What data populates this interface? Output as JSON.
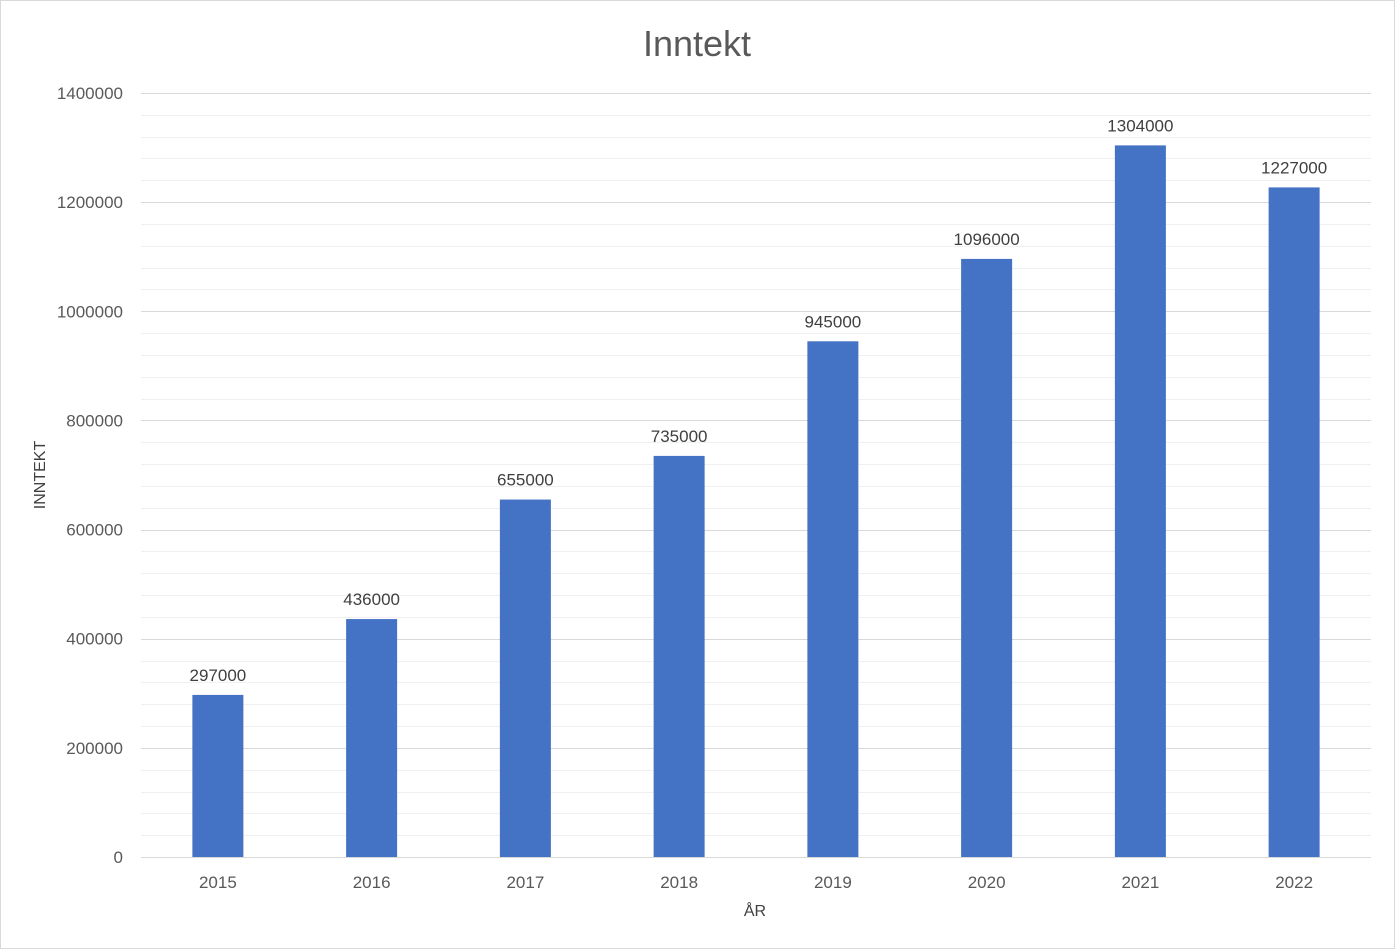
{
  "chart_data": {
    "type": "bar",
    "title": "Inntekt",
    "xlabel": "ÅR",
    "ylabel": "INNTEKT",
    "categories": [
      "2015",
      "2016",
      "2017",
      "2018",
      "2019",
      "2020",
      "2021",
      "2022"
    ],
    "series": [
      {
        "values": [
          297000,
          436000,
          655000,
          735000,
          945000,
          1096000,
          1304000,
          1227000
        ]
      }
    ],
    "data_labels": [
      "297000",
      "436000",
      "655000",
      "735000",
      "945000",
      "1096000",
      "1304000",
      "1227000"
    ],
    "ylim": [
      0,
      1400000
    ],
    "yticks": [
      "0",
      "200000",
      "400000",
      "600000",
      "800000",
      "1000000",
      "1200000",
      "1400000"
    ],
    "major_step": 200000,
    "minor_step": 40000,
    "grid": true,
    "legend": "none",
    "colors": {
      "bar": "#4472C4",
      "major_grid": "#d9d9d9",
      "minor_grid": "#f0f0f0",
      "text": "#595959"
    }
  }
}
